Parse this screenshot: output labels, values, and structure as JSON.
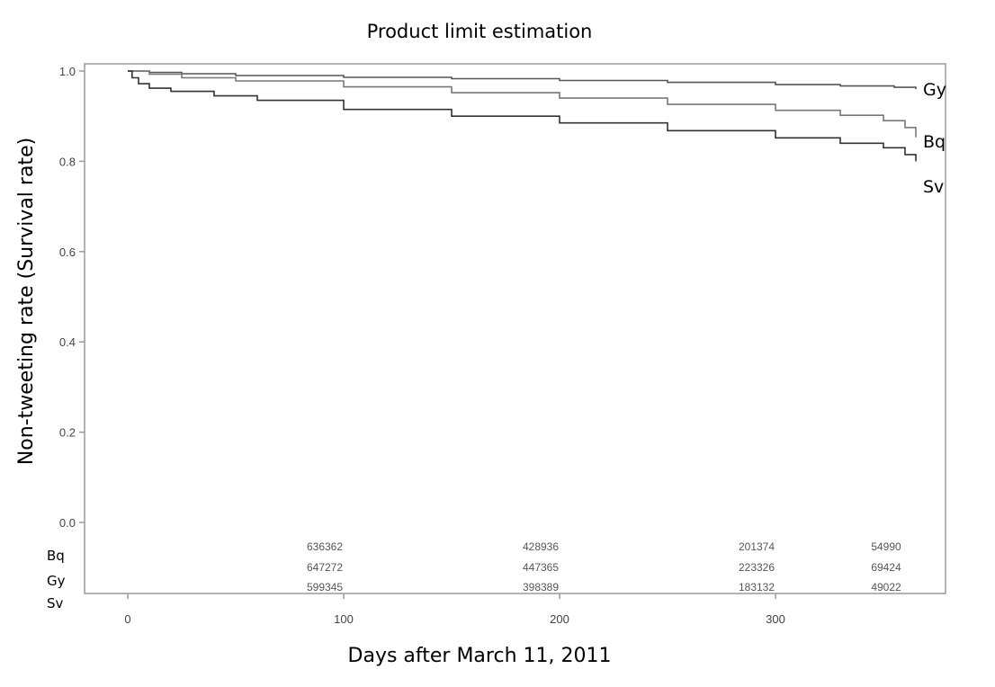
{
  "chart_data": {
    "type": "line",
    "title": "Product limit estimation",
    "xlabel": "Days after March 11, 2011",
    "ylabel": "Non-tweeting rate (Survival rate)",
    "xlim": [
      -20,
      380
    ],
    "ylim": [
      -0.16,
      1.02
    ],
    "x_ticks": [
      0,
      100,
      200,
      300
    ],
    "y_ticks": [
      0.0,
      0.2,
      0.4,
      0.6,
      0.8,
      1.0
    ],
    "x_tick_labels": [
      "0",
      "100",
      "200",
      "300"
    ],
    "y_tick_labels": [
      "0.0",
      "0.2",
      "0.4",
      "0.6",
      "0.8",
      "1.0"
    ],
    "grid": false,
    "legend": "direct labels at right end of lines",
    "series": [
      {
        "name": "Gy",
        "color": "#555555",
        "x": [
          0,
          10,
          25,
          50,
          100,
          150,
          200,
          250,
          300,
          330,
          355,
          365
        ],
        "y": [
          1.0,
          0.997,
          0.994,
          0.99,
          0.986,
          0.983,
          0.979,
          0.975,
          0.97,
          0.967,
          0.964,
          0.96
        ]
      },
      {
        "name": "Bq",
        "color": "#777777",
        "x": [
          0,
          10,
          25,
          50,
          100,
          150,
          200,
          250,
          300,
          330,
          350,
          360,
          365
        ],
        "y": [
          1.0,
          0.993,
          0.985,
          0.978,
          0.965,
          0.952,
          0.94,
          0.926,
          0.913,
          0.902,
          0.89,
          0.875,
          0.853
        ]
      },
      {
        "name": "Sv",
        "color": "#333333",
        "x": [
          0,
          2,
          5,
          10,
          20,
          40,
          60,
          100,
          150,
          200,
          250,
          300,
          330,
          350,
          360,
          365
        ],
        "y": [
          1.0,
          0.985,
          0.972,
          0.962,
          0.955,
          0.945,
          0.935,
          0.915,
          0.9,
          0.885,
          0.868,
          0.852,
          0.84,
          0.83,
          0.815,
          0.8
        ]
      }
    ],
    "risk_table": {
      "rows": [
        "Bq",
        "Gy",
        "Sv"
      ],
      "x": [
        100,
        200,
        300,
        360
      ],
      "values": [
        [
          "636362",
          "428936",
          "201374",
          "54990"
        ],
        [
          "647272",
          "447365",
          "223326",
          "69424"
        ],
        [
          "599345",
          "398389",
          "183132",
          "49022"
        ]
      ]
    }
  }
}
